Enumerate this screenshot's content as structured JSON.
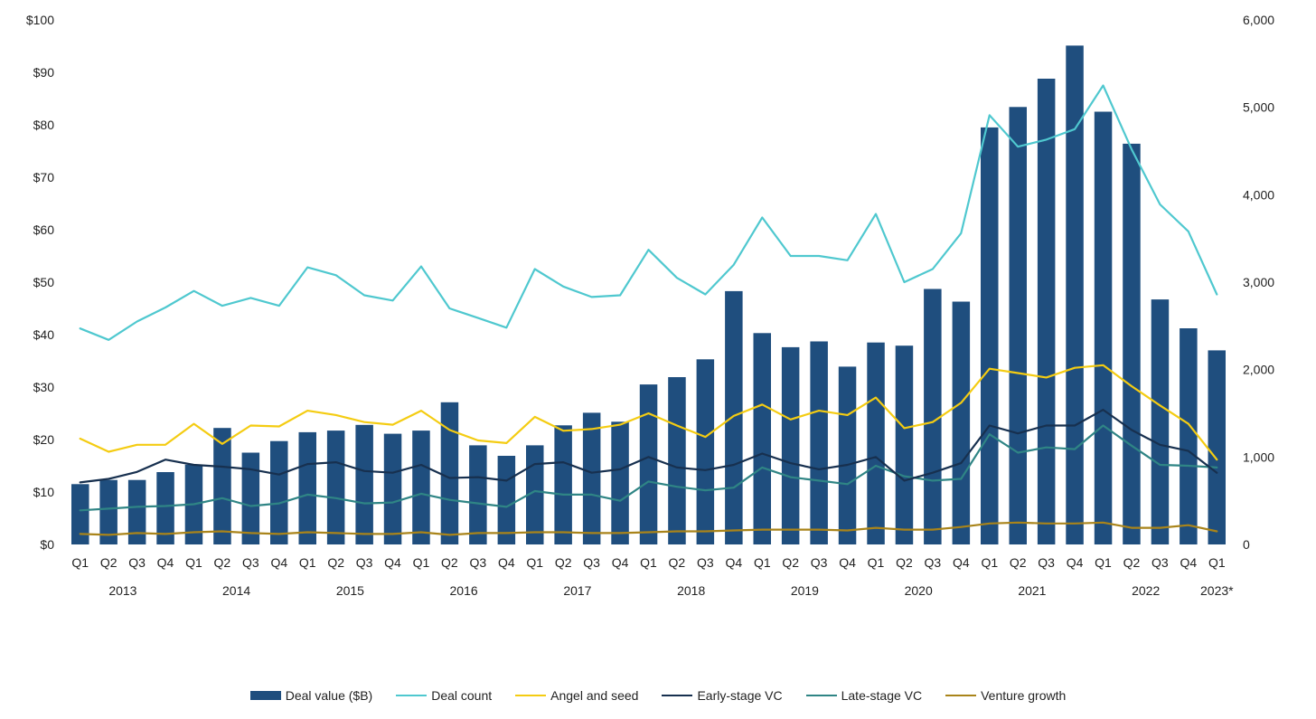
{
  "chart_data": {
    "type": "bar",
    "title": "",
    "xlabel": "",
    "ylabel": "",
    "categories": [
      "Q1",
      "Q2",
      "Q3",
      "Q4",
      "Q1",
      "Q2",
      "Q3",
      "Q4",
      "Q1",
      "Q2",
      "Q3",
      "Q4",
      "Q1",
      "Q2",
      "Q3",
      "Q4",
      "Q1",
      "Q2",
      "Q3",
      "Q4",
      "Q1",
      "Q2",
      "Q3",
      "Q4",
      "Q1",
      "Q2",
      "Q3",
      "Q4",
      "Q1",
      "Q2",
      "Q3",
      "Q4",
      "Q1",
      "Q2",
      "Q3",
      "Q4",
      "Q1",
      "Q2",
      "Q3",
      "Q4",
      "Q1"
    ],
    "years": [
      "2013",
      "2014",
      "2015",
      "2016",
      "2017",
      "2018",
      "2019",
      "2020",
      "2021",
      "2022",
      "2023*"
    ],
    "y_left": {
      "range": [
        0,
        100
      ],
      "ticks": [
        "$0",
        "$10",
        "$20",
        "$30",
        "$40",
        "$50",
        "$60",
        "$70",
        "$80",
        "$90",
        "$100"
      ]
    },
    "y_right": {
      "range": [
        0,
        6000
      ],
      "ticks": [
        "0",
        "1,000",
        "2,000",
        "3,000",
        "4,000",
        "5,000",
        "6,000"
      ]
    },
    "grid": false,
    "legend_position": "bottom",
    "bar_series": {
      "name": "Deal value ($B)",
      "axis": "left",
      "color": "#1f4e7e",
      "values": [
        11.5,
        12.3,
        12.3,
        13.8,
        15.2,
        22.2,
        17.5,
        19.7,
        21.4,
        21.7,
        22.8,
        21.1,
        21.7,
        27.1,
        18.9,
        16.9,
        18.9,
        22.7,
        25.1,
        23.4,
        30.5,
        31.9,
        35.3,
        48.3,
        40.3,
        37.6,
        38.7,
        33.9,
        38.5,
        37.9,
        48.7,
        46.3,
        79.5,
        83.4,
        88.8,
        95.1,
        82.5,
        76.4,
        46.7,
        41.2,
        37.0
      ]
    },
    "line_series": [
      {
        "name": "Deal count",
        "axis": "right",
        "color": "#4fc8cf",
        "values": [
          2470,
          2340,
          2550,
          2710,
          2900,
          2730,
          2820,
          2730,
          3170,
          3080,
          2850,
          2790,
          3180,
          2700,
          2590,
          2480,
          3150,
          2950,
          2830,
          2850,
          3370,
          3050,
          2860,
          3200,
          3740,
          3300,
          3300,
          3250,
          3780,
          3000,
          3150,
          3560,
          4910,
          4550,
          4630,
          4750,
          5250,
          4520,
          3890,
          3580,
          2860
        ]
      },
      {
        "name": "Angel and seed",
        "axis": "right",
        "color": "#f4cc12",
        "values": [
          1210,
          1060,
          1140,
          1140,
          1380,
          1150,
          1360,
          1350,
          1530,
          1480,
          1400,
          1370,
          1530,
          1310,
          1190,
          1160,
          1460,
          1300,
          1320,
          1370,
          1500,
          1360,
          1230,
          1470,
          1600,
          1430,
          1530,
          1480,
          1680,
          1330,
          1400,
          1620,
          2010,
          1960,
          1910,
          2020,
          2050,
          1810,
          1590,
          1380,
          970
        ]
      },
      {
        "name": "Early-stage VC",
        "axis": "right",
        "color": "#17304f",
        "values": [
          710,
          750,
          830,
          970,
          910,
          890,
          860,
          800,
          920,
          940,
          840,
          820,
          910,
          760,
          770,
          730,
          920,
          940,
          820,
          860,
          1000,
          880,
          850,
          910,
          1040,
          930,
          860,
          910,
          1000,
          730,
          820,
          930,
          1360,
          1270,
          1360,
          1360,
          1540,
          1310,
          1140,
          1070,
          820
        ]
      },
      {
        "name": "Late-stage VC",
        "axis": "right",
        "color": "#2f8585",
        "values": [
          390,
          410,
          430,
          440,
          460,
          530,
          440,
          470,
          570,
          530,
          470,
          480,
          580,
          510,
          470,
          430,
          610,
          570,
          570,
          500,
          720,
          660,
          620,
          650,
          880,
          770,
          730,
          690,
          900,
          780,
          730,
          750,
          1260,
          1050,
          1110,
          1090,
          1360,
          1130,
          910,
          900,
          880
        ]
      },
      {
        "name": "Venture growth",
        "axis": "right",
        "color": "#a9841a",
        "values": [
          120,
          110,
          130,
          120,
          140,
          150,
          130,
          120,
          140,
          130,
          120,
          120,
          140,
          110,
          130,
          130,
          140,
          140,
          130,
          130,
          140,
          150,
          150,
          160,
          170,
          170,
          170,
          160,
          190,
          170,
          170,
          200,
          240,
          250,
          240,
          240,
          250,
          190,
          190,
          220,
          150
        ]
      }
    ]
  }
}
